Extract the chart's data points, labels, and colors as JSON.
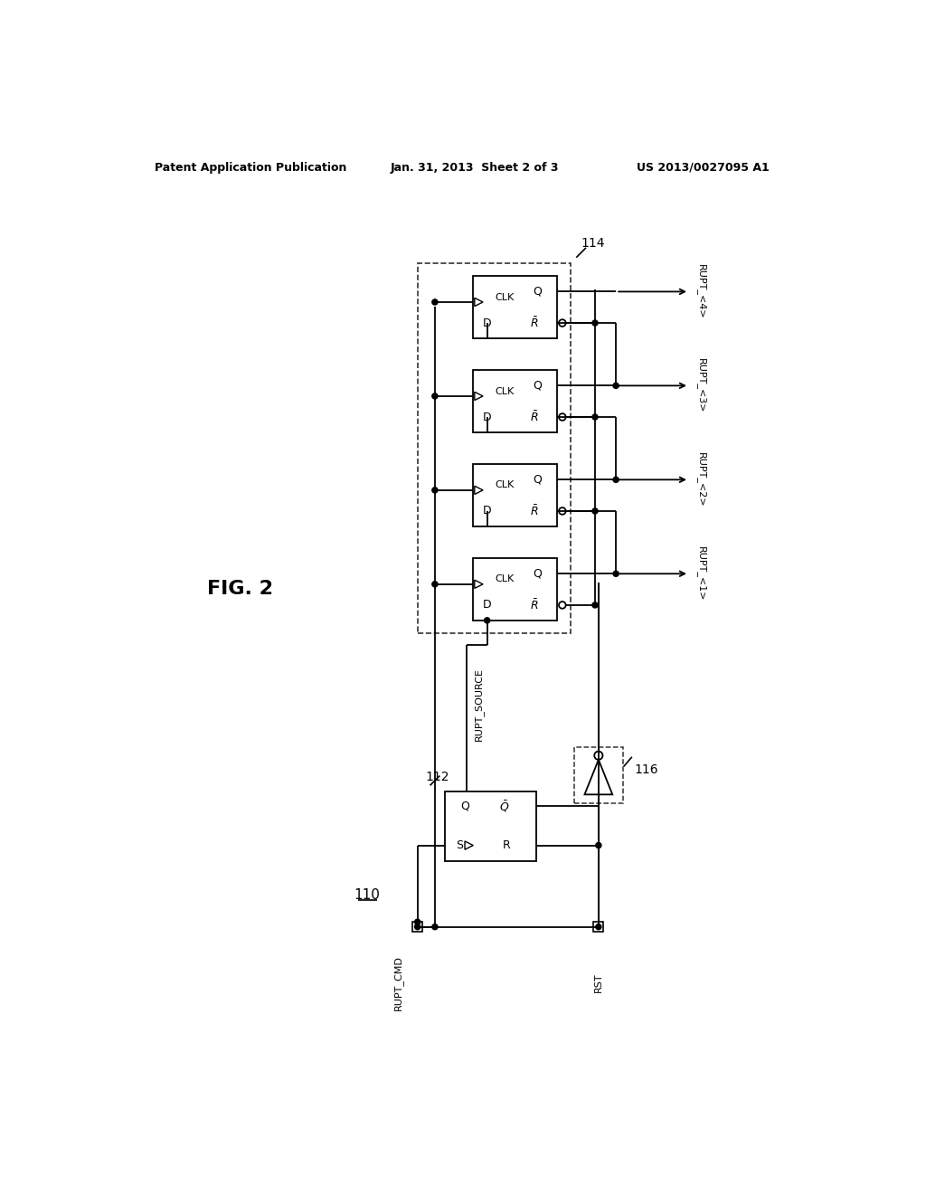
{
  "title_left": "Patent Application Publication",
  "title_center": "Jan. 31, 2013  Sheet 2 of 3",
  "title_right": "US 2013/0027095 A1",
  "fig_label": "FIG. 2",
  "bg_color": "#ffffff",
  "line_color": "#000000",
  "dashed_color": "#555555",
  "label_110": "110",
  "label_112": "112",
  "label_114": "114",
  "label_116": "116",
  "outputs": [
    "RUPT_<4>",
    "RUPT_<3>",
    "RUPT_<2>",
    "RUPT_<1>"
  ],
  "input_cmd": "RUPT_CMD",
  "input_rst": "RST",
  "rupt_source": "RUPT_SOURCE"
}
